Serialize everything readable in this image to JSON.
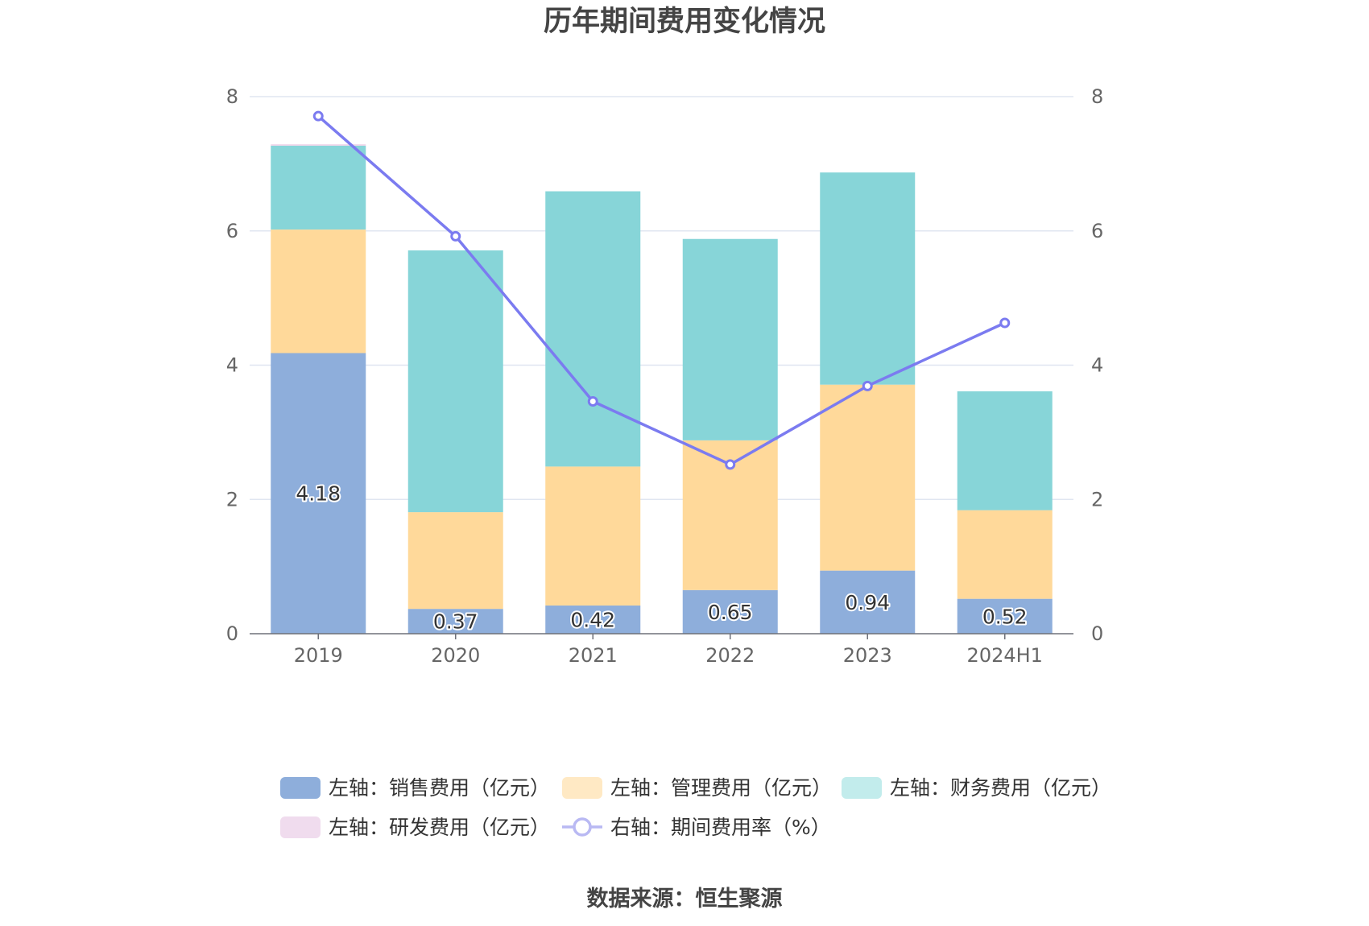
{
  "chart_data": {
    "type": "bar",
    "stacked": true,
    "title": "历年期间费用变化情况",
    "categories": [
      "2019",
      "2020",
      "2021",
      "2022",
      "2023",
      "2024H1"
    ],
    "y_left": {
      "min": 0,
      "max": 8,
      "ticks": [
        "0",
        "2",
        "4",
        "6",
        "8"
      ]
    },
    "y_right": {
      "min": 0,
      "max": 8,
      "ticks": [
        "0",
        "2",
        "4",
        "6",
        "8"
      ]
    },
    "grid": true,
    "legend_position": "bottom",
    "series": [
      {
        "name": "左轴：销售费用（亿元）",
        "axis": "left",
        "type": "bar",
        "color": "#8eaedb",
        "values": [
          4.18,
          0.37,
          0.42,
          0.65,
          0.94,
          0.52
        ],
        "labels": [
          "4.18",
          "0.37",
          "0.42",
          "0.65",
          "0.94",
          "0.52"
        ]
      },
      {
        "name": "左轴：管理费用（亿元）",
        "axis": "left",
        "type": "bar",
        "color": "#ffd99a",
        "values": [
          1.84,
          1.44,
          2.07,
          2.23,
          2.77,
          1.32
        ]
      },
      {
        "name": "左轴：财务费用（亿元）",
        "axis": "left",
        "type": "bar",
        "color": "#87d5d8",
        "values": [
          1.25,
          3.9,
          4.1,
          3.0,
          3.16,
          1.77
        ]
      },
      {
        "name": "左轴：研发费用（亿元）",
        "axis": "left",
        "type": "bar",
        "color": "#f0d4ea",
        "values": [
          0.02,
          0,
          0,
          0,
          0,
          0
        ]
      },
      {
        "name": "右轴：期间费用率（%）",
        "axis": "right",
        "type": "line",
        "color": "#7b7bf0",
        "values": [
          7.71,
          5.92,
          3.46,
          2.52,
          3.69,
          4.63
        ]
      }
    ],
    "legend_colors": [
      "#8eaedb",
      "#ffe9c4",
      "#c2ecec",
      "#f0dcee",
      "#b9b9f3"
    ]
  },
  "source": "数据来源：恒生聚源"
}
